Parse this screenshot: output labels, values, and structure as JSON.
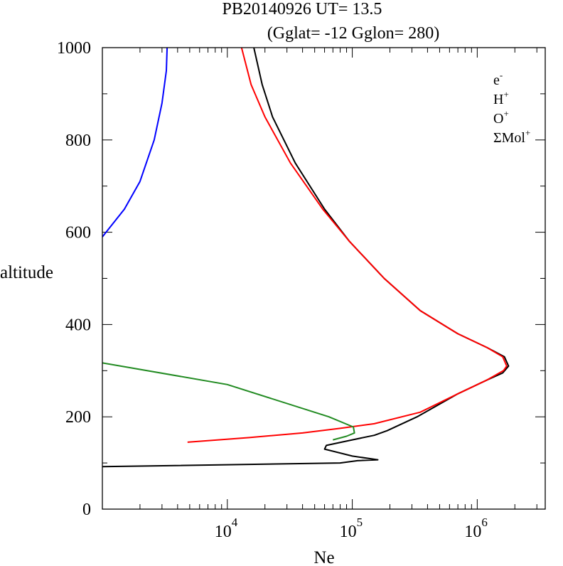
{
  "chart_data": {
    "type": "line",
    "title": "PB20140926   UT=  13.5",
    "subtitle": "(Gglat= -12   Gglon=  280)",
    "xlabel": "Ne",
    "ylabel": "altitude",
    "xscale": "log",
    "xlim": [
      1000,
      3500000
    ],
    "ylim": [
      0,
      1000
    ],
    "yticks": [
      "0",
      "200",
      "400",
      "600",
      "800",
      "1000"
    ],
    "xticks": [
      {
        "value": 10000,
        "base": "10",
        "exp": "4"
      },
      {
        "value": 100000,
        "base": "10",
        "exp": "5"
      },
      {
        "value": 1000000,
        "base": "10",
        "exp": "6"
      }
    ],
    "legend_position": "top-right",
    "series": [
      {
        "name": "e",
        "name_sup": "-",
        "color": "#000000",
        "points": [
          [
            1000,
            92
          ],
          [
            80000,
            100
          ],
          [
            110000,
            105
          ],
          [
            160000,
            107
          ],
          [
            100000,
            115
          ],
          [
            60000,
            130
          ],
          [
            62000,
            138
          ],
          [
            100000,
            150
          ],
          [
            150000,
            160
          ],
          [
            190000,
            170
          ],
          [
            330000,
            200
          ],
          [
            700000,
            250
          ],
          [
            1200000,
            280
          ],
          [
            1600000,
            295
          ],
          [
            1780000,
            310
          ],
          [
            1650000,
            330
          ],
          [
            1200000,
            350
          ],
          [
            700000,
            380
          ],
          [
            350000,
            430
          ],
          [
            180000,
            500
          ],
          [
            95000,
            580
          ],
          [
            60000,
            650
          ],
          [
            35000,
            750
          ],
          [
            23000,
            850
          ],
          [
            19000,
            920
          ],
          [
            16300,
            1000
          ]
        ]
      },
      {
        "name": "H",
        "name_sup": "+",
        "color": "#0000ff",
        "points": [
          [
            1000,
            590
          ],
          [
            1500,
            650
          ],
          [
            2000,
            710
          ],
          [
            2600,
            800
          ],
          [
            3000,
            880
          ],
          [
            3250,
            950
          ],
          [
            3300,
            1000
          ]
        ]
      },
      {
        "name": "O",
        "name_sup": "+",
        "color": "#ff0000",
        "points": [
          [
            4800,
            145
          ],
          [
            15000,
            155
          ],
          [
            40000,
            165
          ],
          [
            80000,
            175
          ],
          [
            150000,
            185
          ],
          [
            350000,
            210
          ],
          [
            700000,
            250
          ],
          [
            1200000,
            280
          ],
          [
            1620000,
            300
          ],
          [
            1720000,
            310
          ],
          [
            1600000,
            330
          ],
          [
            1200000,
            350
          ],
          [
            700000,
            380
          ],
          [
            350000,
            430
          ],
          [
            180000,
            500
          ],
          [
            95000,
            580
          ],
          [
            58000,
            650
          ],
          [
            32000,
            750
          ],
          [
            20000,
            850
          ],
          [
            15500,
            920
          ],
          [
            13000,
            1000
          ]
        ]
      },
      {
        "name": "ΣMol",
        "name_sup": "+",
        "color": "#228b22",
        "points": [
          [
            1000,
            317
          ],
          [
            10000,
            270
          ],
          [
            65000,
            200
          ],
          [
            102000,
            178
          ],
          [
            104000,
            165
          ],
          [
            90000,
            158
          ],
          [
            70000,
            150
          ]
        ]
      }
    ]
  }
}
